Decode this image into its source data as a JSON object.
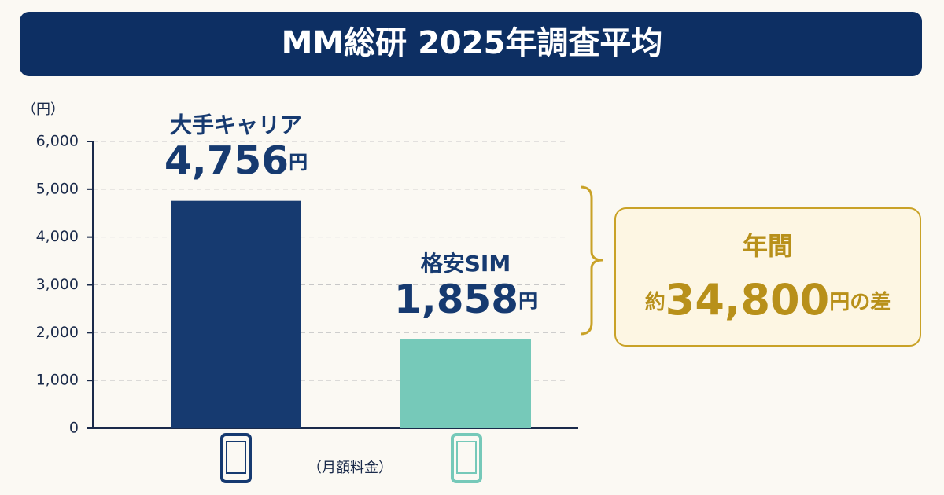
{
  "chart_data": {
    "type": "bar",
    "title": "MM総研 2025年調査平均",
    "y_label": "（円）",
    "x_label": "（月額料金）",
    "categories": [
      "大手キャリア",
      "格安SIM"
    ],
    "values": [
      4756,
      1858
    ],
    "value_labels": [
      "4,756",
      "1,858"
    ],
    "value_label_unit": "円",
    "colors": [
      "#163a70",
      "#76c9b9"
    ],
    "ylim": [
      0,
      6000
    ],
    "yticks": [
      0,
      {
        "value": 1000,
        "label": "1,000"
      },
      {
        "value": 2000,
        "label": "2,000"
      },
      {
        "value": 3000,
        "label": "3,000"
      },
      {
        "value": 4000,
        "label": "4,000"
      },
      {
        "value": 5000,
        "label": "5,000"
      },
      {
        "value": 6000,
        "label": "6,000"
      }
    ],
    "grid": true,
    "annotation": {
      "line1": "年間",
      "prefix": "約",
      "amount": "34,800",
      "suffix": "円の差"
    }
  }
}
